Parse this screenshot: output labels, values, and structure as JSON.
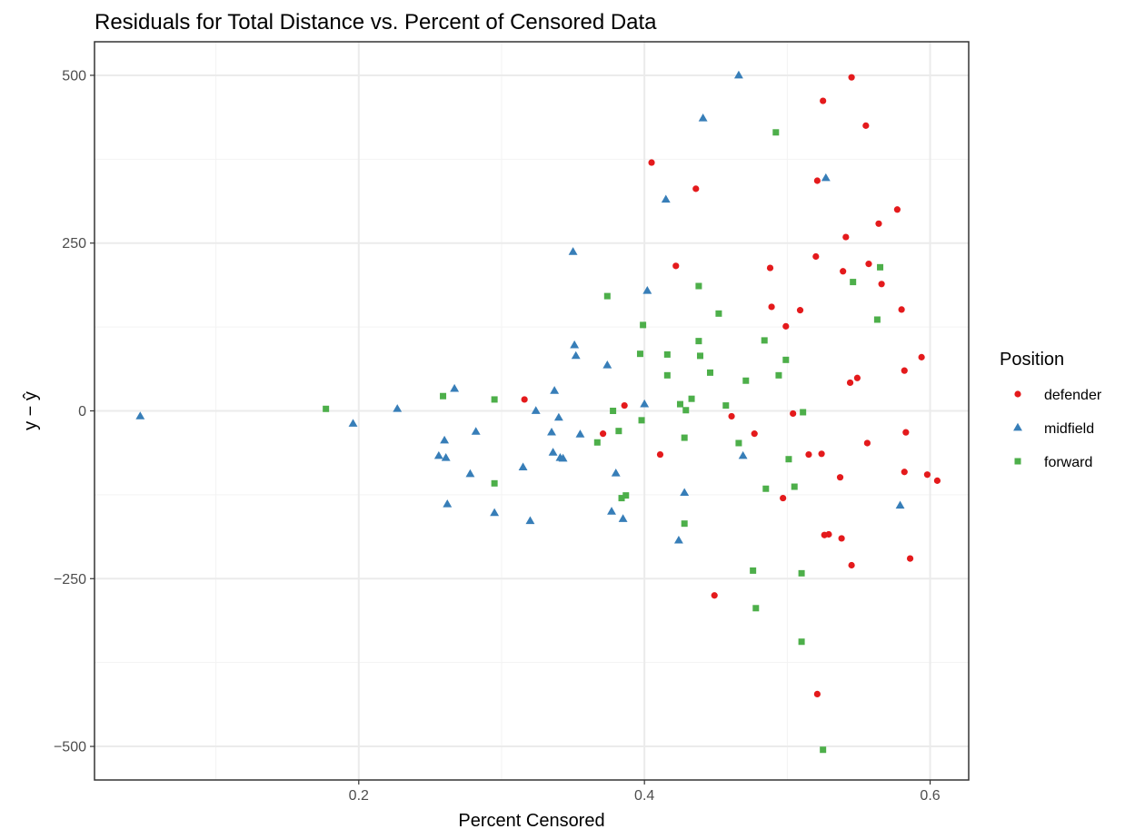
{
  "chart_data": {
    "type": "scatter",
    "title": "Residuals for Total Distance vs. Percent of Censored Data",
    "xlabel": "Percent Censored",
    "ylabel": "y − ŷ",
    "xlim": [
      0.015,
      0.627
    ],
    "ylim": [
      -550,
      550
    ],
    "x_ticks": [
      0.2,
      0.4,
      0.6
    ],
    "x_tick_labels": [
      "0.2",
      "0.4",
      "0.6"
    ],
    "y_ticks": [
      500,
      250,
      0,
      -250,
      -500
    ],
    "y_tick_labels": [
      "500",
      "250",
      "0",
      "−250",
      "−500"
    ],
    "grid": true,
    "legend": {
      "title": "Position",
      "placement": "right"
    },
    "series": [
      {
        "name": "defender",
        "shape": "circle",
        "color": "#E41A1C",
        "points": [
          [
            0.316,
            17
          ],
          [
            0.371,
            -34
          ],
          [
            0.386,
            8
          ],
          [
            0.405,
            370
          ],
          [
            0.411,
            -65
          ],
          [
            0.422,
            216
          ],
          [
            0.436,
            331
          ],
          [
            0.449,
            -275
          ],
          [
            0.461,
            -8
          ],
          [
            0.477,
            -34
          ],
          [
            0.488,
            213
          ],
          [
            0.489,
            155
          ],
          [
            0.497,
            -130
          ],
          [
            0.499,
            126
          ],
          [
            0.504,
            -4
          ],
          [
            0.509,
            150
          ],
          [
            0.515,
            -65
          ],
          [
            0.52,
            230
          ],
          [
            0.521,
            343
          ],
          [
            0.521,
            -422
          ],
          [
            0.524,
            -64
          ],
          [
            0.525,
            462
          ],
          [
            0.526,
            -185
          ],
          [
            0.529,
            -184
          ],
          [
            0.537,
            -99
          ],
          [
            0.538,
            -190
          ],
          [
            0.539,
            208
          ],
          [
            0.541,
            259
          ],
          [
            0.544,
            42
          ],
          [
            0.545,
            497
          ],
          [
            0.545,
            -230
          ],
          [
            0.549,
            49
          ],
          [
            0.555,
            425
          ],
          [
            0.556,
            -48
          ],
          [
            0.557,
            219
          ],
          [
            0.564,
            279
          ],
          [
            0.566,
            189
          ],
          [
            0.577,
            300
          ],
          [
            0.58,
            151
          ],
          [
            0.582,
            60
          ],
          [
            0.582,
            -91
          ],
          [
            0.583,
            -32
          ],
          [
            0.586,
            -220
          ],
          [
            0.594,
            80
          ],
          [
            0.598,
            -95
          ],
          [
            0.605,
            -104
          ]
        ]
      },
      {
        "name": "midfield",
        "shape": "triangle",
        "color": "#377EB8",
        "points": [
          [
            0.047,
            -8
          ],
          [
            0.196,
            -19
          ],
          [
            0.227,
            3
          ],
          [
            0.256,
            -67
          ],
          [
            0.26,
            -44
          ],
          [
            0.261,
            -70
          ],
          [
            0.262,
            -139
          ],
          [
            0.267,
            33
          ],
          [
            0.278,
            -94
          ],
          [
            0.282,
            -31
          ],
          [
            0.295,
            -152
          ],
          [
            0.315,
            -84
          ],
          [
            0.32,
            -164
          ],
          [
            0.324,
            0
          ],
          [
            0.335,
            -32
          ],
          [
            0.336,
            -62
          ],
          [
            0.337,
            30
          ],
          [
            0.34,
            -10
          ],
          [
            0.341,
            -70
          ],
          [
            0.343,
            -71
          ],
          [
            0.35,
            237
          ],
          [
            0.351,
            98
          ],
          [
            0.352,
            82
          ],
          [
            0.355,
            -35
          ],
          [
            0.374,
            68
          ],
          [
            0.377,
            -150
          ],
          [
            0.38,
            -93
          ],
          [
            0.385,
            -161
          ],
          [
            0.4,
            10
          ],
          [
            0.402,
            179
          ],
          [
            0.415,
            315
          ],
          [
            0.424,
            -193
          ],
          [
            0.428,
            -122
          ],
          [
            0.441,
            436
          ],
          [
            0.466,
            500
          ],
          [
            0.469,
            -67
          ],
          [
            0.527,
            347
          ],
          [
            0.579,
            -141
          ]
        ]
      },
      {
        "name": "forward",
        "shape": "square",
        "color": "#4DAF4A",
        "points": [
          [
            0.177,
            3
          ],
          [
            0.259,
            22
          ],
          [
            0.295,
            17
          ],
          [
            0.295,
            -108
          ],
          [
            0.367,
            -47
          ],
          [
            0.374,
            171
          ],
          [
            0.378,
            0
          ],
          [
            0.382,
            -30
          ],
          [
            0.384,
            -130
          ],
          [
            0.387,
            -126
          ],
          [
            0.397,
            85
          ],
          [
            0.398,
            -14
          ],
          [
            0.399,
            128
          ],
          [
            0.416,
            84
          ],
          [
            0.416,
            53
          ],
          [
            0.425,
            10
          ],
          [
            0.428,
            -40
          ],
          [
            0.428,
            -168
          ],
          [
            0.429,
            1
          ],
          [
            0.433,
            18
          ],
          [
            0.438,
            186
          ],
          [
            0.438,
            104
          ],
          [
            0.439,
            82
          ],
          [
            0.446,
            57
          ],
          [
            0.452,
            145
          ],
          [
            0.457,
            8
          ],
          [
            0.466,
            -48
          ],
          [
            0.471,
            45
          ],
          [
            0.476,
            -238
          ],
          [
            0.478,
            -294
          ],
          [
            0.484,
            105
          ],
          [
            0.485,
            -116
          ],
          [
            0.492,
            415
          ],
          [
            0.494,
            53
          ],
          [
            0.499,
            76
          ],
          [
            0.501,
            -72
          ],
          [
            0.505,
            -113
          ],
          [
            0.51,
            -242
          ],
          [
            0.51,
            -344
          ],
          [
            0.511,
            -2
          ],
          [
            0.525,
            -505
          ],
          [
            0.546,
            192
          ],
          [
            0.563,
            136
          ],
          [
            0.565,
            214
          ]
        ]
      }
    ]
  }
}
